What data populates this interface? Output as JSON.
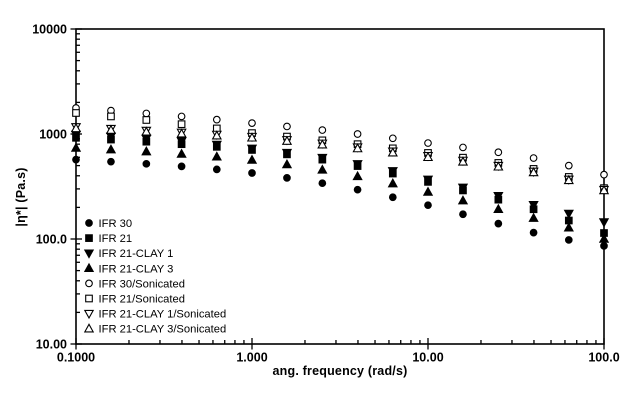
{
  "figure": {
    "background": "#ffffff",
    "ink_color": "#000000"
  },
  "chart_data": {
    "type": "scatter",
    "title": "",
    "xlabel": "ang. frequency (rad/s)",
    "ylabel": "|η*| (Pa.s)",
    "x_scale": "log",
    "y_scale": "log",
    "xlim": [
      0.1,
      100
    ],
    "ylim": [
      10,
      10000
    ],
    "x_tick_values": [
      0.1,
      1,
      10,
      100
    ],
    "x_tick_labels": [
      "0.1000",
      "1.000",
      "10.00",
      "100.0"
    ],
    "y_tick_values": [
      10000,
      1000,
      100,
      10
    ],
    "y_tick_labels": [
      "10000",
      "1000",
      "100.0",
      "10.00"
    ],
    "grid": false,
    "legend_position": "inside-lower-left",
    "x": [
      0.1,
      0.158,
      0.251,
      0.398,
      0.631,
      1.0,
      1.58,
      2.51,
      3.98,
      6.31,
      10.0,
      15.8,
      25.1,
      39.8,
      63.1,
      100.0
    ],
    "series": [
      {
        "name": "IFR 30",
        "marker": "circle",
        "fill": "filled",
        "values": [
          570,
          545,
          520,
          492,
          460,
          425,
          382,
          340,
          295,
          250,
          210,
          172,
          140,
          115,
          98,
          86
        ]
      },
      {
        "name": "IFR 21",
        "marker": "square",
        "fill": "filled",
        "values": [
          920,
          885,
          845,
          800,
          755,
          705,
          640,
          570,
          495,
          420,
          350,
          290,
          237,
          192,
          150,
          114
        ]
      },
      {
        "name": "IFR 21-CLAY 1",
        "marker": "triangle-down",
        "fill": "filled",
        "values": [
          990,
          950,
          905,
          855,
          795,
          730,
          665,
          595,
          520,
          445,
          370,
          310,
          258,
          212,
          175,
          145
        ]
      },
      {
        "name": "IFR 21-CLAY 3",
        "marker": "triangle-up",
        "fill": "filled",
        "values": [
          735,
          710,
          680,
          645,
          607,
          565,
          512,
          455,
          395,
          337,
          280,
          232,
          192,
          158,
          128,
          100
        ]
      },
      {
        "name": "IFR 30/Sonicated",
        "marker": "circle",
        "fill": "open",
        "values": [
          1770,
          1670,
          1570,
          1470,
          1370,
          1270,
          1180,
          1090,
          1000,
          910,
          820,
          745,
          670,
          590,
          500,
          410
        ]
      },
      {
        "name": "IFR 21/Sonicated",
        "marker": "square",
        "fill": "open",
        "values": [
          1585,
          1470,
          1360,
          1240,
          1130,
          1020,
          945,
          870,
          800,
          730,
          660,
          595,
          530,
          465,
          390,
          305
        ]
      },
      {
        "name": "IFR 21-CLAY 1/Sonicated",
        "marker": "triangle-down",
        "fill": "open",
        "values": [
          1170,
          1125,
          1080,
          1035,
          990,
          945,
          880,
          815,
          750,
          685,
          620,
          560,
          500,
          440,
          370,
          295
        ]
      },
      {
        "name": "IFR 21-CLAY 3/Sonicated",
        "marker": "triangle-up",
        "fill": "open",
        "values": [
          1130,
          1088,
          1047,
          1005,
          962,
          920,
          855,
          790,
          727,
          663,
          600,
          543,
          487,
          430,
          362,
          290
        ]
      }
    ]
  }
}
